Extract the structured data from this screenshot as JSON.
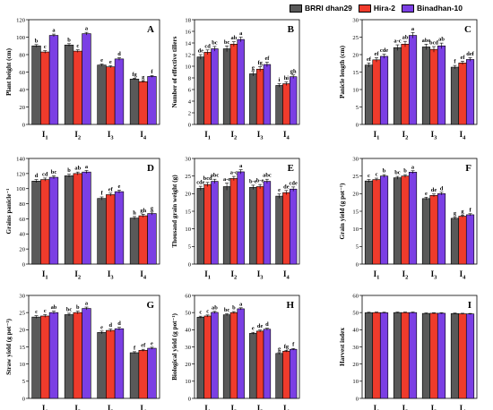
{
  "legend": {
    "series": [
      {
        "name": "BRRI dhan29",
        "color": "#595959"
      },
      {
        "name": "Hira-2",
        "color": "#ef3b2c"
      },
      {
        "name": "Binadhan-10",
        "color": "#7b3fe4"
      }
    ]
  },
  "chart_data": [
    {
      "panel": "A",
      "type": "bar",
      "ylabel": "Plant height (cm)",
      "categories": [
        "I1",
        "I2",
        "I3",
        "I4"
      ],
      "ylim": [
        0,
        120
      ],
      "yticks": [
        0,
        20,
        40,
        60,
        80,
        100,
        120
      ],
      "series": [
        {
          "name": "BRRI dhan29",
          "values": [
            90,
            91,
            68,
            52
          ],
          "errors": [
            1.5,
            1.5,
            1.2,
            1.0
          ],
          "letters": [
            "b",
            "b",
            "e",
            "fg"
          ]
        },
        {
          "name": "Hira-2",
          "values": [
            83,
            84,
            66,
            49
          ],
          "errors": [
            1.5,
            1.5,
            1.2,
            1.0
          ],
          "letters": [
            "c",
            "c",
            "e",
            "g"
          ]
        },
        {
          "name": "Binadhan-10",
          "values": [
            102,
            104,
            75,
            55
          ],
          "errors": [
            1.5,
            1.5,
            1.5,
            1.0
          ],
          "letters": [
            "a",
            "a",
            "d",
            "f"
          ]
        }
      ]
    },
    {
      "panel": "B",
      "type": "bar",
      "ylabel": "Number of effective tillers",
      "categories": [
        "I1",
        "I2",
        "I3",
        "I4"
      ],
      "ylim": [
        0,
        18
      ],
      "yticks": [
        0,
        2,
        4,
        6,
        8,
        10,
        12,
        14,
        16,
        18
      ],
      "series": [
        {
          "name": "BRRI dhan29",
          "values": [
            11.6,
            13.0,
            8.7,
            6.7
          ],
          "errors": [
            0.4,
            0.5,
            0.4,
            0.3
          ],
          "letters": [
            "de",
            "bc",
            "g",
            "i"
          ]
        },
        {
          "name": "Hira-2",
          "values": [
            12.4,
            13.8,
            9.5,
            7.0
          ],
          "errors": [
            0.4,
            0.4,
            0.4,
            0.3
          ],
          "letters": [
            "cd",
            "ab",
            "fg",
            "hi"
          ]
        },
        {
          "name": "Binadhan-10",
          "values": [
            13.0,
            14.6,
            10.3,
            8.2
          ],
          "errors": [
            0.4,
            0.4,
            0.4,
            0.3
          ],
          "letters": [
            "bc",
            "a",
            "ef",
            "gh"
          ]
        }
      ]
    },
    {
      "panel": "C",
      "type": "bar",
      "ylabel": "Panicle length (cm)",
      "categories": [
        "I1",
        "I2",
        "I3",
        "I4"
      ],
      "ylim": [
        0,
        30
      ],
      "yticks": [
        0,
        5,
        10,
        15,
        20,
        25,
        30
      ],
      "series": [
        {
          "name": "BRRI dhan29",
          "values": [
            17.0,
            22.0,
            22.2,
            16.4
          ],
          "errors": [
            0.6,
            0.8,
            0.8,
            0.5
          ],
          "letters": [
            "ef",
            "a-c",
            "abc",
            "f"
          ]
        },
        {
          "name": "Hira-2",
          "values": [
            18.5,
            23.0,
            21.5,
            17.6
          ],
          "errors": [
            0.6,
            0.8,
            0.8,
            0.5
          ],
          "letters": [
            "ef",
            "ab",
            "bcd",
            "ef"
          ]
        },
        {
          "name": "Binadhan-10",
          "values": [
            19.5,
            25.5,
            22.5,
            18.6
          ],
          "errors": [
            0.6,
            0.8,
            0.8,
            0.5
          ],
          "letters": [
            "cde",
            "a",
            "ab",
            "def"
          ]
        }
      ]
    },
    {
      "panel": "D",
      "type": "bar",
      "ylabel": "Grains panicle⁻¹",
      "categories": [
        "I1",
        "I2",
        "I3",
        "I4"
      ],
      "ylim": [
        0,
        140
      ],
      "yticks": [
        0,
        20,
        40,
        60,
        80,
        100,
        120,
        140
      ],
      "series": [
        {
          "name": "BRRI dhan29",
          "values": [
            110,
            117,
            87,
            61
          ],
          "errors": [
            2,
            2,
            2,
            2
          ],
          "letters": [
            "d",
            "b",
            "f",
            "h"
          ]
        },
        {
          "name": "Hira-2",
          "values": [
            112,
            120,
            92,
            64
          ],
          "errors": [
            2,
            2,
            2,
            2
          ],
          "letters": [
            "cd",
            "ab",
            "ef",
            "gh"
          ]
        },
        {
          "name": "Binadhan-10",
          "values": [
            115,
            122,
            96,
            67
          ],
          "errors": [
            2,
            2,
            2,
            2
          ],
          "letters": [
            "bc",
            "a",
            "e",
            "g"
          ]
        }
      ]
    },
    {
      "panel": "E",
      "type": "bar",
      "ylabel": "Thousand grain weight (g)",
      "categories": [
        "I1",
        "I2",
        "I3",
        "I4"
      ],
      "ylim": [
        0,
        30
      ],
      "yticks": [
        0,
        5,
        10,
        15,
        20,
        25,
        30
      ],
      "series": [
        {
          "name": "BRRI dhan29",
          "values": [
            21.5,
            22.0,
            21.8,
            19.3
          ],
          "errors": [
            0.6,
            1.0,
            0.6,
            0.6
          ],
          "letters": [
            "cde",
            "a-e",
            "b-e",
            "e"
          ]
        },
        {
          "name": "Hira-2",
          "values": [
            22.6,
            24.3,
            22.0,
            20.3
          ],
          "errors": [
            0.6,
            0.6,
            0.6,
            0.6
          ],
          "letters": [
            "bcd",
            "a-c",
            "b-e",
            "de"
          ]
        },
        {
          "name": "Binadhan-10",
          "values": [
            23.5,
            26.2,
            23.5,
            21.3
          ],
          "errors": [
            0.6,
            0.6,
            0.6,
            0.6
          ],
          "letters": [
            "abc",
            "a",
            "abc",
            "cde"
          ]
        }
      ]
    },
    {
      "panel": "F",
      "type": "bar",
      "ylabel": "Grain yield (g pot⁻¹)",
      "categories": [
        "I1",
        "I2",
        "I3",
        "I4"
      ],
      "ylim": [
        0,
        30
      ],
      "yticks": [
        0,
        5,
        10,
        15,
        20,
        25,
        30
      ],
      "series": [
        {
          "name": "BRRI dhan29",
          "values": [
            23.6,
            24.5,
            18.6,
            13.0
          ],
          "errors": [
            0.4,
            0.4,
            0.4,
            0.3
          ],
          "letters": [
            "c",
            "bc",
            "e",
            "g"
          ]
        },
        {
          "name": "Hira-2",
          "values": [
            24.0,
            25.0,
            19.5,
            13.6
          ],
          "errors": [
            0.4,
            0.4,
            0.4,
            0.3
          ],
          "letters": [
            "c",
            "b",
            "de",
            "g"
          ]
        },
        {
          "name": "Binadhan-10",
          "values": [
            25.0,
            26.1,
            20.0,
            14.0
          ],
          "errors": [
            0.4,
            0.4,
            0.4,
            0.3
          ],
          "letters": [
            "b",
            "a",
            "d",
            "f"
          ]
        }
      ]
    },
    {
      "panel": "G",
      "type": "bar",
      "ylabel": "Straw yield (g pot⁻¹)",
      "categories": [
        "I1",
        "I2",
        "I3",
        "I4"
      ],
      "ylim": [
        0,
        30
      ],
      "yticks": [
        0,
        5,
        10,
        15,
        20,
        25,
        30
      ],
      "series": [
        {
          "name": "BRRI dhan29",
          "values": [
            23.7,
            24.4,
            19.2,
            13.3
          ],
          "errors": [
            0.4,
            0.4,
            0.4,
            0.3
          ],
          "letters": [
            "c",
            "bc",
            "e",
            "f"
          ]
        },
        {
          "name": "Hira-2",
          "values": [
            24.0,
            25.0,
            19.8,
            14.0
          ],
          "errors": [
            0.4,
            0.4,
            0.4,
            0.3
          ],
          "letters": [
            "c",
            "b",
            "d",
            "ef"
          ]
        },
        {
          "name": "Binadhan-10",
          "values": [
            25.0,
            26.2,
            20.3,
            14.6
          ],
          "errors": [
            0.4,
            0.4,
            0.4,
            0.3
          ],
          "letters": [
            "ab",
            "a",
            "d",
            "e"
          ]
        }
      ]
    },
    {
      "panel": "H",
      "type": "bar",
      "ylabel": "Biological yield (g pot⁻¹)",
      "categories": [
        "I1",
        "I2",
        "I3",
        "I4"
      ],
      "ylim": [
        0,
        60
      ],
      "yticks": [
        0,
        10,
        20,
        30,
        40,
        50,
        60
      ],
      "series": [
        {
          "name": "BRRI dhan29",
          "values": [
            47.3,
            48.7,
            37.9,
            26.2
          ],
          "errors": [
            0.6,
            0.6,
            0.6,
            0.5
          ],
          "letters": [
            "c",
            "bc",
            "e",
            "g"
          ]
        },
        {
          "name": "Hira-2",
          "values": [
            48.0,
            50.0,
            39.2,
            27.5
          ],
          "errors": [
            0.6,
            0.6,
            0.6,
            0.5
          ],
          "letters": [
            "c",
            "b",
            "de",
            "fg"
          ]
        },
        {
          "name": "Binadhan-10",
          "values": [
            50.1,
            52.2,
            40.3,
            28.6
          ],
          "errors": [
            0.6,
            0.6,
            0.6,
            0.5
          ],
          "letters": [
            "ab",
            "a",
            "d",
            "f"
          ]
        }
      ]
    },
    {
      "panel": "I",
      "type": "bar",
      "ylabel": "Harvest index",
      "categories": [
        "I1",
        "I2",
        "I3",
        "I4"
      ],
      "ylim": [
        0,
        60
      ],
      "yticks": [
        0,
        10,
        20,
        30,
        40,
        50,
        60
      ],
      "series": [
        {
          "name": "BRRI dhan29",
          "values": [
            49.9,
            50.0,
            49.5,
            49.4
          ],
          "errors": [
            0.3,
            0.3,
            0.3,
            0.3
          ],
          "letters": [
            "",
            "",
            "",
            ""
          ]
        },
        {
          "name": "Hira-2",
          "values": [
            50.0,
            50.0,
            49.6,
            49.3
          ],
          "errors": [
            0.3,
            0.3,
            0.3,
            0.3
          ],
          "letters": [
            "",
            "",
            "",
            ""
          ]
        },
        {
          "name": "Binadhan-10",
          "values": [
            49.9,
            50.0,
            49.6,
            49.2
          ],
          "errors": [
            0.3,
            0.3,
            0.3,
            0.3
          ],
          "letters": [
            "",
            "",
            "",
            ""
          ]
        }
      ]
    }
  ]
}
